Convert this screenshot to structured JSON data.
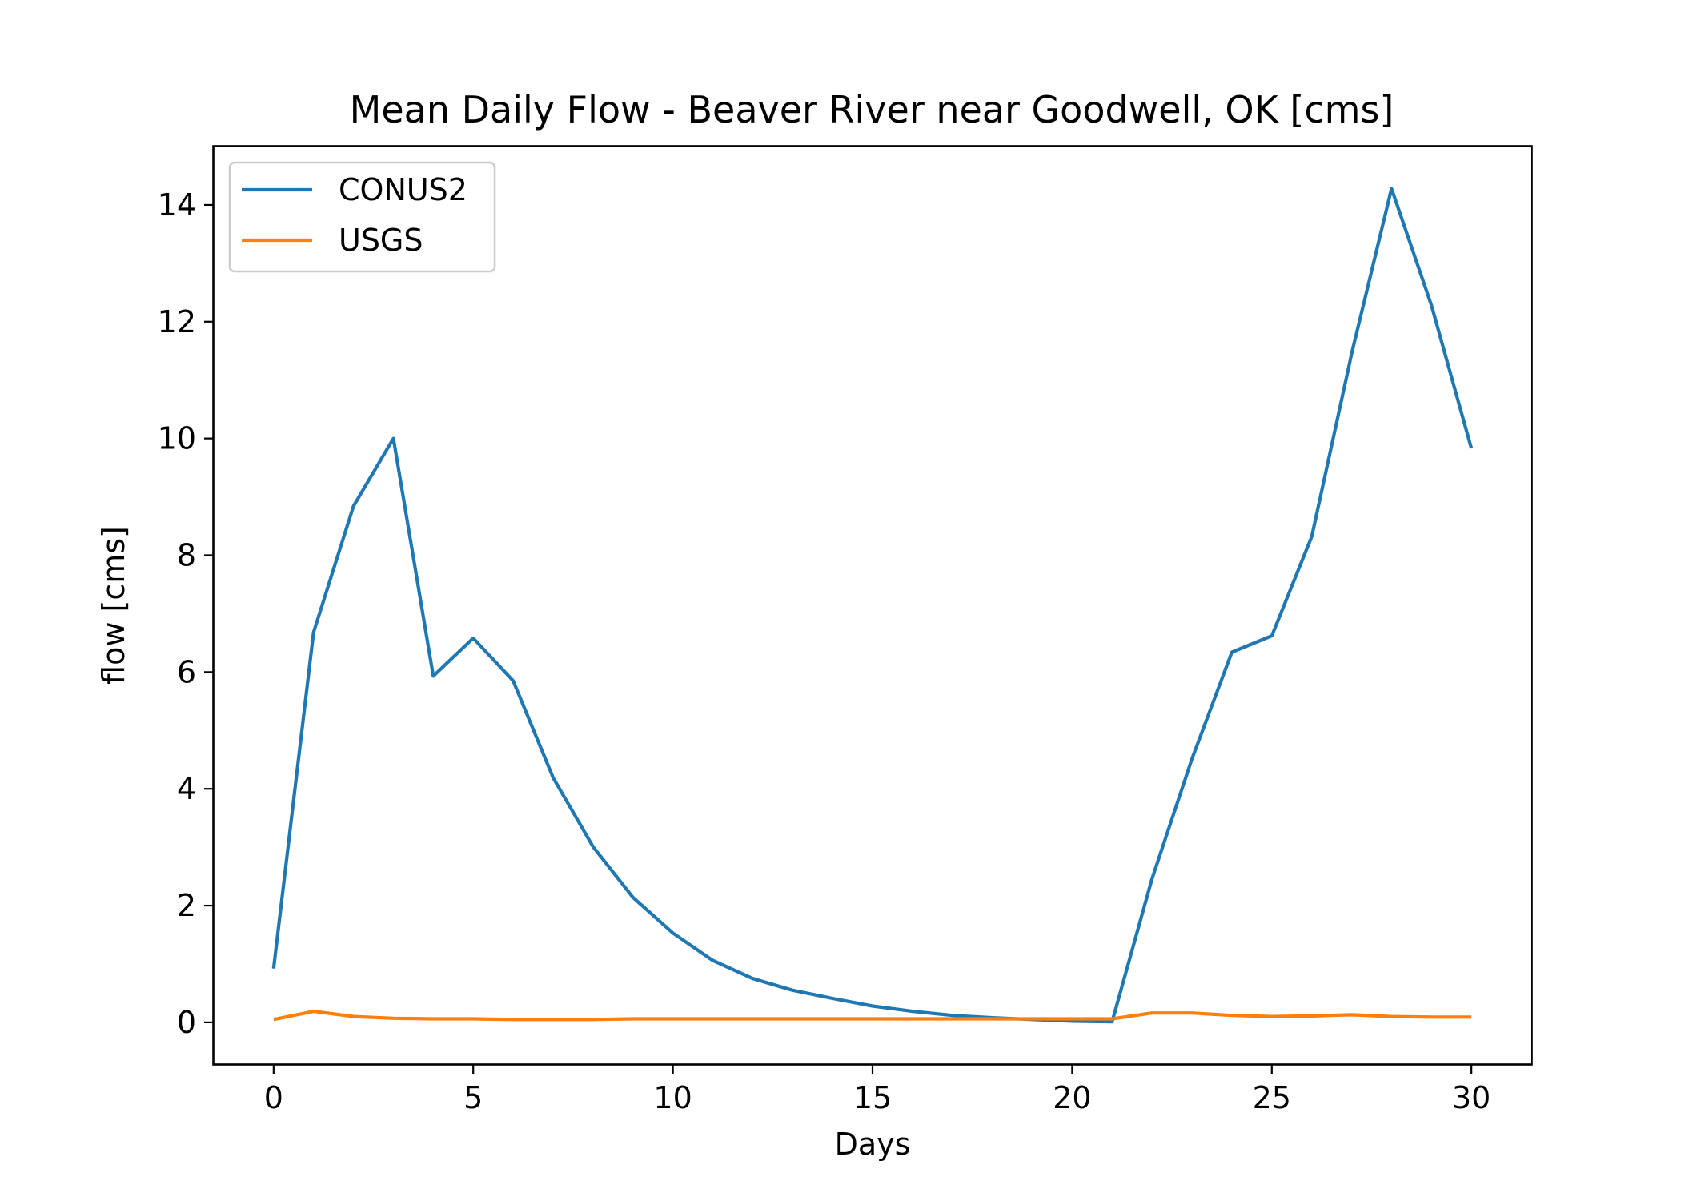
{
  "chart_data": {
    "type": "line",
    "title": "Mean Daily Flow - Beaver River near Goodwell, OK [cms]",
    "xlabel": "Days",
    "ylabel": "flow [cms]",
    "xlim": [
      -1.5,
      31.5
    ],
    "ylim": [
      -0.7143,
      15.0
    ],
    "xticks": [
      0,
      5,
      10,
      15,
      20,
      25,
      30
    ],
    "xtick_labels": [
      "0",
      "5",
      "10",
      "15",
      "20",
      "25",
      "30"
    ],
    "yticks": [
      0,
      2,
      4,
      6,
      8,
      10,
      12,
      14
    ],
    "ytick_labels": [
      "0",
      "2",
      "4",
      "6",
      "8",
      "10",
      "12",
      "14"
    ],
    "grid": false,
    "legend_position": "upper-left",
    "x": [
      0,
      1,
      2,
      3,
      4,
      5,
      6,
      7,
      8,
      9,
      10,
      11,
      12,
      13,
      14,
      15,
      16,
      17,
      18,
      19,
      20,
      21,
      22,
      23,
      24,
      25,
      26,
      27,
      28,
      29,
      30
    ],
    "series": [
      {
        "name": "CONUS2",
        "color": "#1f77b4",
        "values": [
          0.92,
          6.68,
          8.84,
          10.0,
          5.93,
          6.58,
          5.85,
          4.19,
          3.01,
          2.14,
          1.53,
          1.06,
          0.75,
          0.55,
          0.41,
          0.28,
          0.19,
          0.12,
          0.08,
          0.05,
          0.02,
          0.01,
          2.46,
          4.51,
          6.34,
          6.62,
          8.32,
          11.45,
          14.28,
          12.28,
          9.83
        ]
      },
      {
        "name": "USGS",
        "color": "#ff7f0e",
        "values": [
          0.05,
          0.19,
          0.1,
          0.07,
          0.06,
          0.06,
          0.05,
          0.05,
          0.05,
          0.06,
          0.06,
          0.06,
          0.06,
          0.06,
          0.06,
          0.06,
          0.06,
          0.06,
          0.06,
          0.06,
          0.06,
          0.06,
          0.16,
          0.16,
          0.12,
          0.1,
          0.11,
          0.13,
          0.1,
          0.09,
          0.09
        ]
      }
    ]
  }
}
